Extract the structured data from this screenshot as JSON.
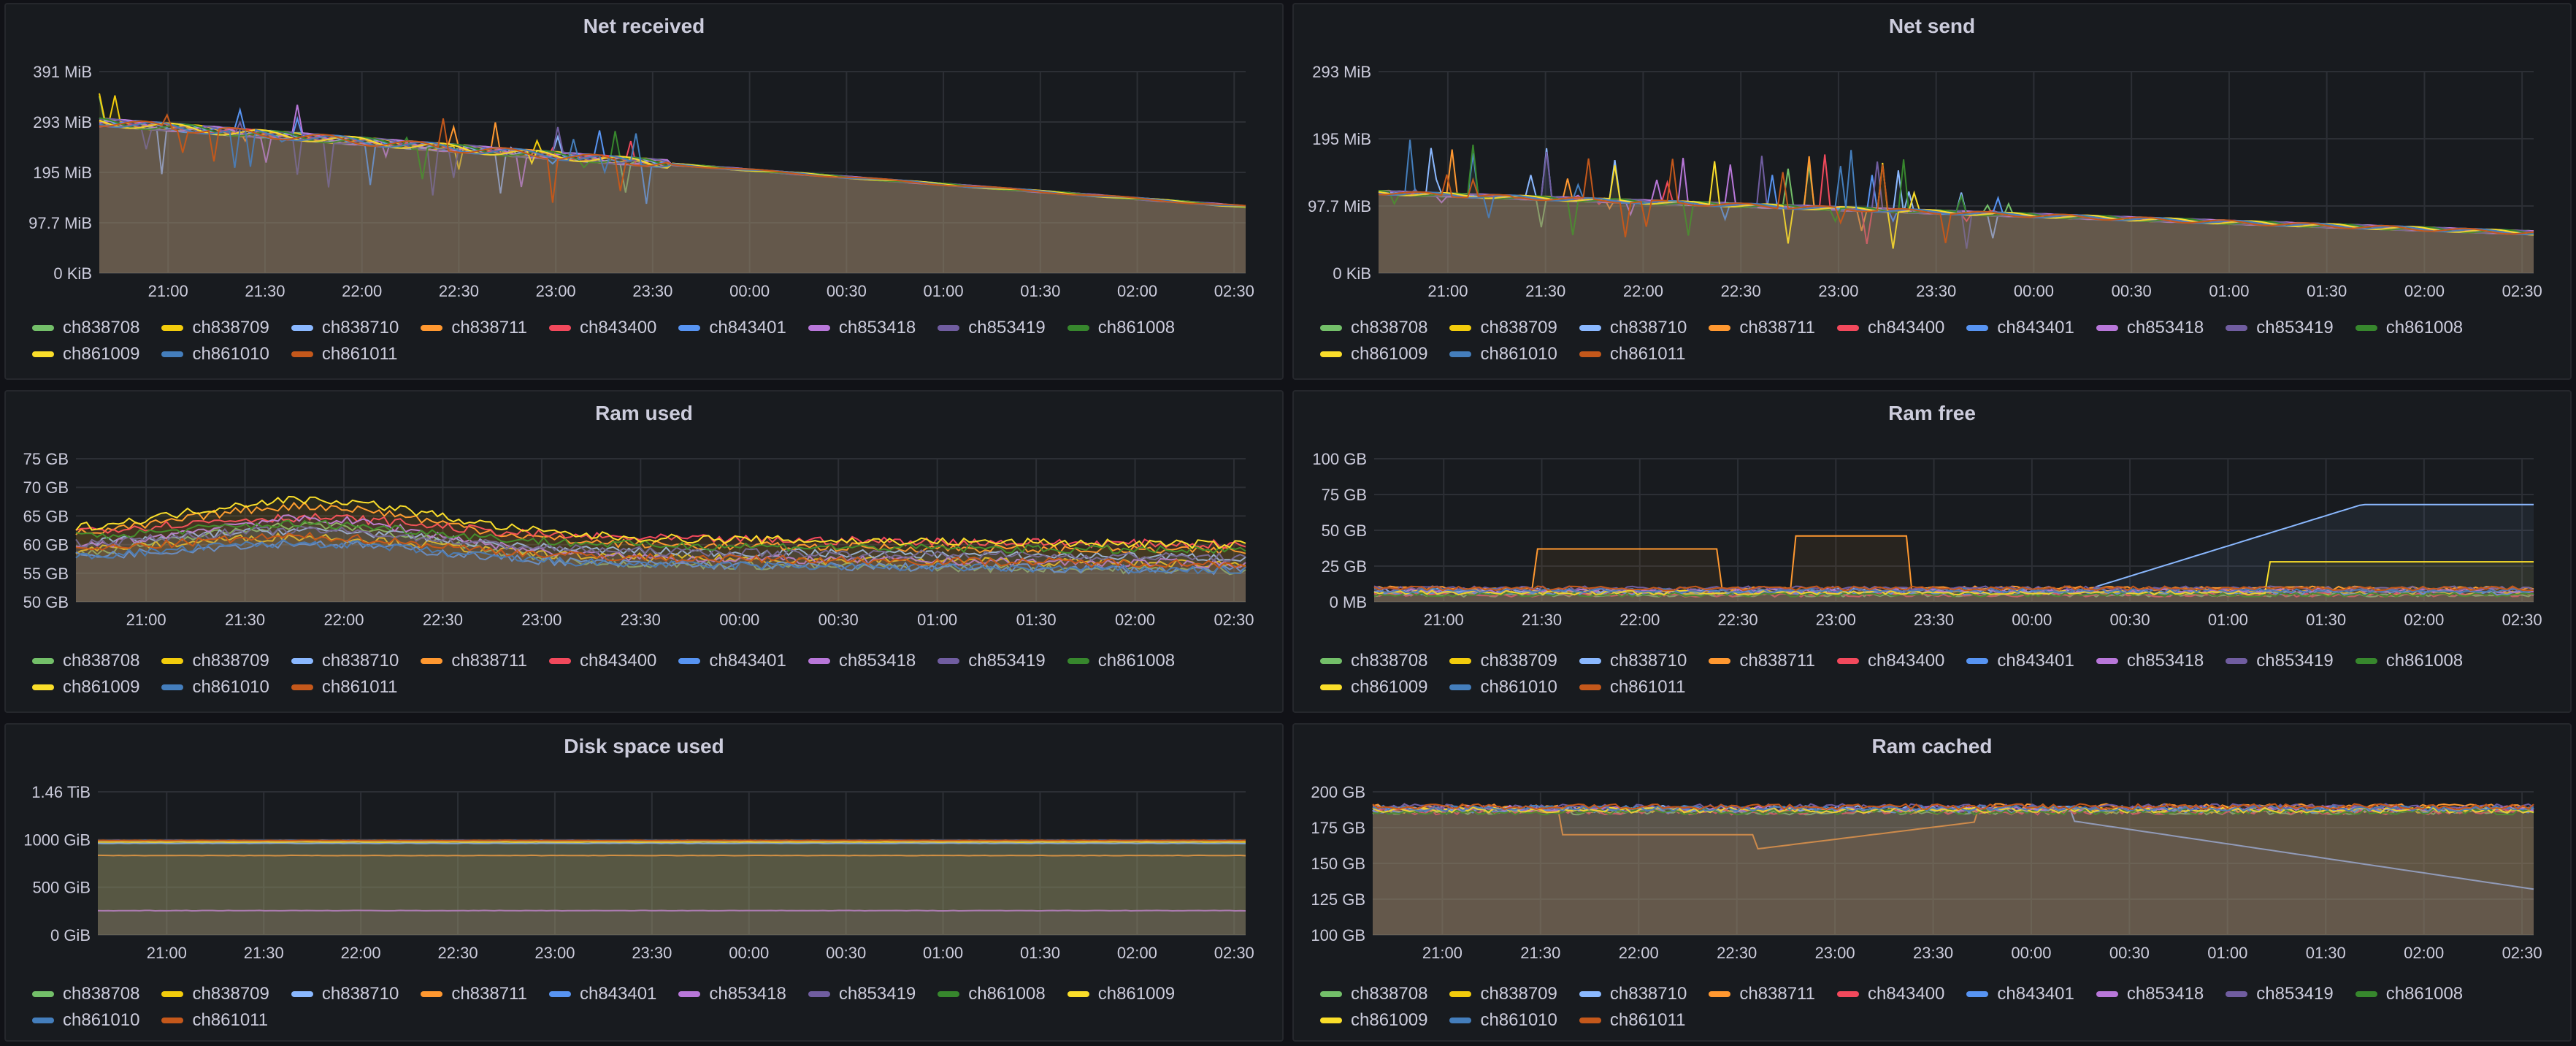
{
  "series_colors": {
    "ch838708": "#73bf69",
    "ch838709": "#f2cc0c",
    "ch838710": "#8ab8ff",
    "ch838711": "#ff9830",
    "ch843400": "#f2495c",
    "ch843401": "#5794f2",
    "ch853418": "#b877d9",
    "ch853419": "#705da0",
    "ch861008": "#37872d",
    "ch861009": "#fade2a",
    "ch861010": "#447ebc",
    "ch861011": "#c4581b"
  },
  "time_labels": [
    "21:00",
    "21:30",
    "22:00",
    "22:30",
    "23:00",
    "23:30",
    "00:00",
    "00:30",
    "01:00",
    "01:30",
    "02:00",
    "02:30"
  ],
  "panels": [
    {
      "key": "net_received",
      "title": "Net received",
      "y_ticks": [
        "391 MiB",
        "293 MiB",
        "195 MiB",
        "97.7 MiB",
        "0 KiB"
      ],
      "legend": [
        "ch838708",
        "ch838709",
        "ch838710",
        "ch838711",
        "ch843400",
        "ch843401",
        "ch853418",
        "ch853419",
        "ch861008",
        "ch861009",
        "ch861010",
        "ch861011"
      ]
    },
    {
      "key": "net_send",
      "title": "Net send",
      "y_ticks": [
        "293 MiB",
        "195 MiB",
        "97.7 MiB",
        "0 KiB"
      ],
      "legend": [
        "ch838708",
        "ch838709",
        "ch838710",
        "ch838711",
        "ch843400",
        "ch843401",
        "ch853418",
        "ch853419",
        "ch861008",
        "ch861009",
        "ch861010",
        "ch861011"
      ]
    },
    {
      "key": "ram_used",
      "title": "Ram used",
      "y_ticks": [
        "75 GB",
        "70 GB",
        "65 GB",
        "60 GB",
        "55 GB",
        "50 GB"
      ],
      "legend": [
        "ch838708",
        "ch838709",
        "ch838710",
        "ch838711",
        "ch843400",
        "ch843401",
        "ch853418",
        "ch853419",
        "ch861008",
        "ch861009",
        "ch861010",
        "ch861011"
      ]
    },
    {
      "key": "ram_free",
      "title": "Ram free",
      "y_ticks": [
        "100 GB",
        "75 GB",
        "50 GB",
        "25 GB",
        "0 MB"
      ],
      "legend": [
        "ch838708",
        "ch838709",
        "ch838710",
        "ch838711",
        "ch843400",
        "ch843401",
        "ch853418",
        "ch853419",
        "ch861008",
        "ch861009",
        "ch861010",
        "ch861011"
      ]
    },
    {
      "key": "disk_space_used",
      "title": "Disk space used",
      "y_ticks": [
        "1.46 TiB",
        "1000 GiB",
        "500 GiB",
        "0 GiB"
      ],
      "legend": [
        "ch838708",
        "ch838709",
        "ch838710",
        "ch838711",
        "ch843401",
        "ch853418",
        "ch853419",
        "ch861008",
        "ch861009",
        "ch861010",
        "ch861011"
      ]
    },
    {
      "key": "ram_cached",
      "title": "Ram cached",
      "y_ticks": [
        "200 GB",
        "175 GB",
        "150 GB",
        "125 GB",
        "100 GB"
      ],
      "legend": [
        "ch838708",
        "ch838709",
        "ch838710",
        "ch838711",
        "ch843400",
        "ch843401",
        "ch853418",
        "ch853419",
        "ch861008",
        "ch861009",
        "ch861010",
        "ch861011"
      ]
    }
  ]
}
